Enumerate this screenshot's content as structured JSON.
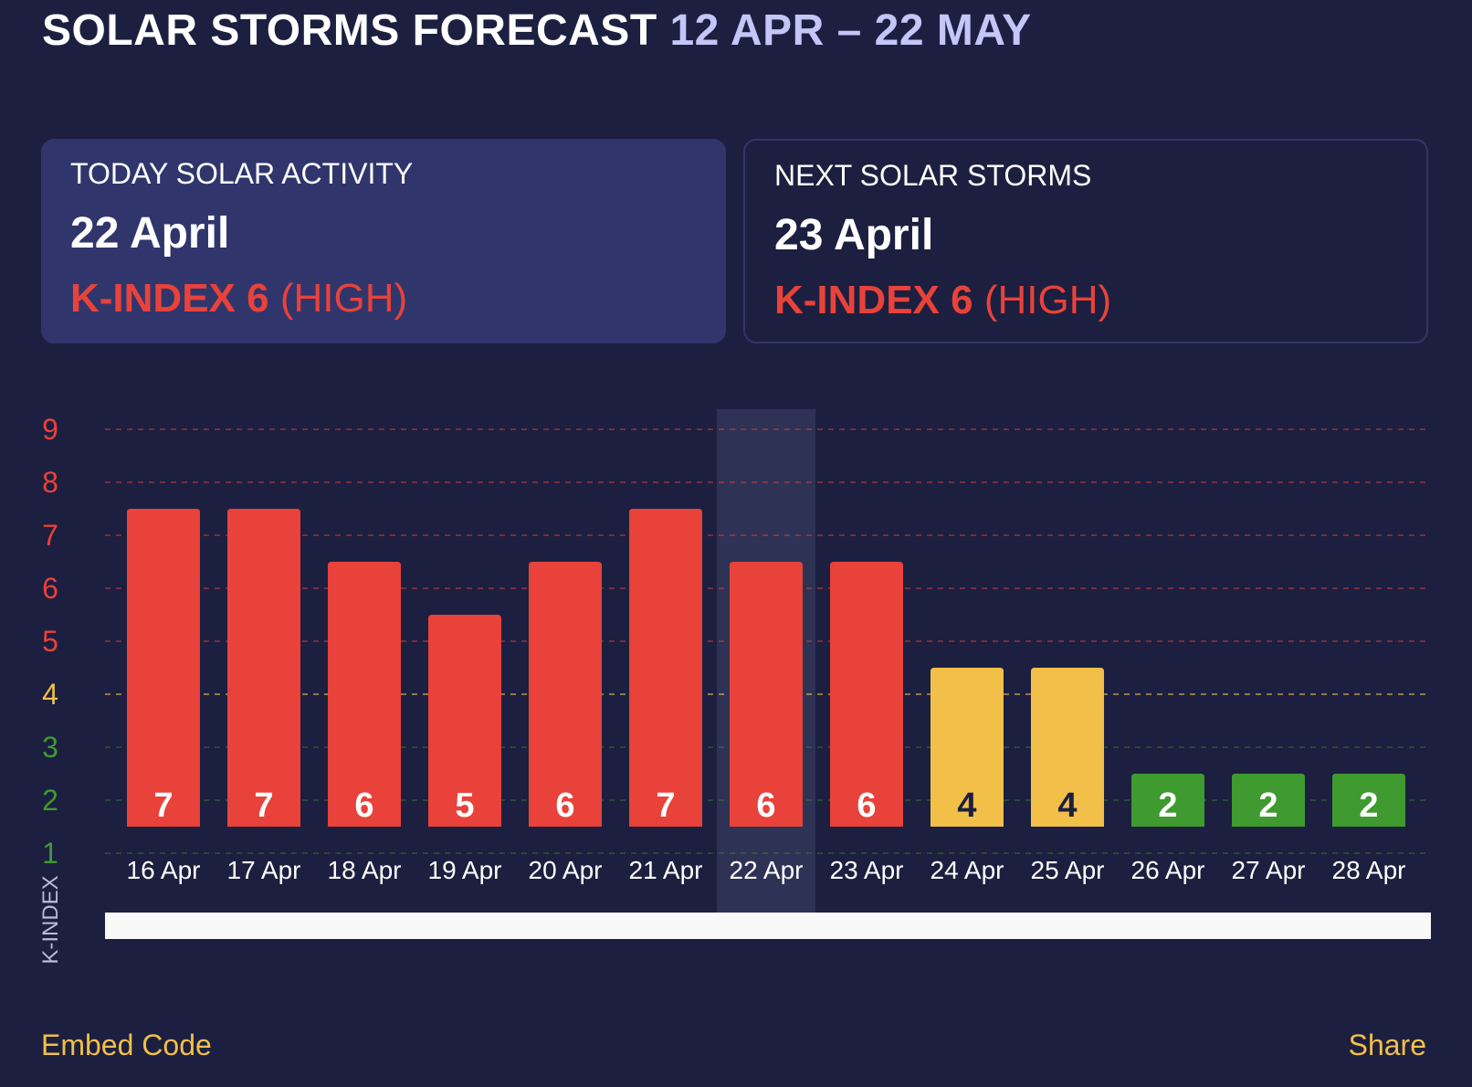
{
  "header": {
    "title": "SOLAR STORMS FORECAST",
    "date_range": "12 APR – 22 MAY"
  },
  "today_card": {
    "label": "TODAY SOLAR ACTIVITY",
    "date": "22 April",
    "k_label": "K-INDEX 6",
    "level": "(HIGH)"
  },
  "next_card": {
    "label": "NEXT SOLAR STORMS",
    "date": "23 April",
    "k_label": "K-INDEX 6",
    "level": "(HIGH)"
  },
  "chart_data": {
    "type": "bar",
    "categories": [
      "16 Apr",
      "17 Apr",
      "18 Apr",
      "19 Apr",
      "20 Apr",
      "21 Apr",
      "22 Apr",
      "23 Apr",
      "24 Apr",
      "25 Apr",
      "26 Apr",
      "27 Apr",
      "28 Apr"
    ],
    "values": [
      7,
      7,
      6,
      5,
      6,
      7,
      6,
      6,
      4,
      4,
      2,
      2,
      2
    ],
    "ylabel": "K-INDEX",
    "yticks": [
      1,
      2,
      3,
      4,
      5,
      6,
      7,
      8,
      9
    ],
    "ylim": [
      1,
      9
    ],
    "highlighted_category": "22 Apr",
    "grid": true,
    "level_colors": {
      "high": "#e8423a",
      "moderate": "#f2bf49",
      "low": "#3f9b2f"
    }
  },
  "footer": {
    "embed_label": "Embed Code",
    "share_label": "Share"
  }
}
